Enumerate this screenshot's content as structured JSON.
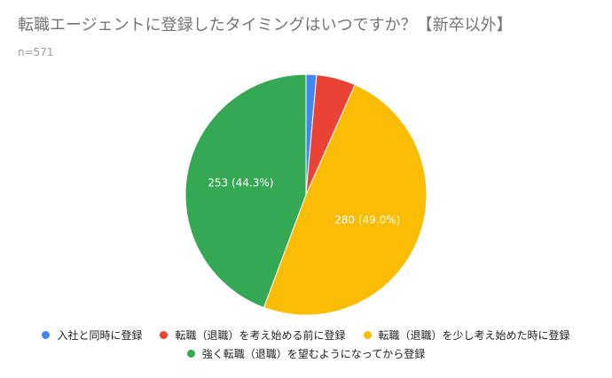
{
  "chart_data": {
    "type": "pie",
    "title": "転職エージェントに登録したタイミングはいつですか？【新卒以外】",
    "subtitle": "n=571",
    "slices": [
      {
        "label": "入社と同時に登録",
        "value": 8,
        "color": "#4285f4",
        "data_label": ""
      },
      {
        "label": "転職（退職）を考え始める前に登録",
        "value": 30,
        "color": "#ea4335",
        "data_label": ""
      },
      {
        "label": "転職（退職）を少し考え始めた時に登録",
        "value": 280,
        "color": "#fbbc04",
        "data_label": "280 (49.0%)"
      },
      {
        "label": "強く転職（退職）を望むようになってから登録",
        "value": 253,
        "color": "#34a853",
        "data_label": "253 (44.3%)"
      }
    ],
    "legend_position": "bottom"
  }
}
